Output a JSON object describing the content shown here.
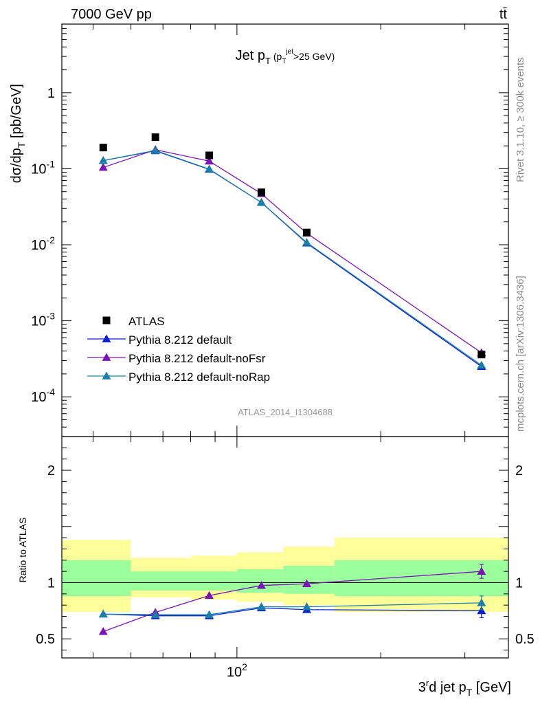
{
  "header": {
    "left": "7000 GeV pp",
    "right": "tt̄"
  },
  "side_labels": {
    "rivet": "Rivet 3.1.10, ≥ 300k events",
    "mcplots": "mcplots.cern.ch [arXiv:1306.3436]"
  },
  "chart_data": [
    {
      "type": "line",
      "panel": "main",
      "title": "Jet p_T (p_T^jet > 25 GeV)",
      "ylabel": "dσ/dp_T [pb/GeV]",
      "xlabel": "",
      "xscale": "log",
      "yscale": "log",
      "xlim": [
        43,
        370
      ],
      "ylim": [
        3e-05,
        8
      ],
      "y_ticks": [
        {
          "value": 0.0001,
          "label": "10^-4"
        },
        {
          "value": 0.001,
          "label": "10^-3"
        },
        {
          "value": 0.01,
          "label": "10^-2"
        },
        {
          "value": 0.1,
          "label": "10^-1"
        },
        {
          "value": 1,
          "label": "1"
        }
      ],
      "legend_position": "bottom-left",
      "watermark": "ATLAS_2014_I1304688",
      "data_points": {
        "name": "ATLAS",
        "color": "#000000",
        "x": [
          52.5,
          67.5,
          87.5,
          112.5,
          140,
          325
        ],
        "y": [
          0.19,
          0.26,
          0.15,
          0.049,
          0.0145,
          0.00036
        ]
      },
      "series": [
        {
          "name": "Pythia 8.212 default",
          "color": "#0a1fd0",
          "x": [
            52.5,
            67.5,
            87.5,
            112.5,
            140,
            325
          ],
          "y": [
            0.128,
            0.172,
            0.098,
            0.036,
            0.0105,
            0.00025
          ]
        },
        {
          "name": "Pythia 8.212 default-noFsr",
          "color": "#7a12b8",
          "x": [
            52.5,
            67.5,
            87.5,
            112.5,
            140,
            325
          ],
          "y": [
            0.104,
            0.178,
            0.126,
            0.047,
            0.0142,
            0.00038
          ]
        },
        {
          "name": "Pythia 8.212 default-noRap",
          "color": "#1a7fa8",
          "x": [
            52.5,
            67.5,
            87.5,
            112.5,
            140,
            325
          ],
          "y": [
            0.128,
            0.174,
            0.099,
            0.036,
            0.0107,
            0.00026
          ]
        }
      ]
    },
    {
      "type": "line",
      "panel": "ratio",
      "ylabel": "Ratio to ATLAS",
      "xlabel": "3rd jet p_T [GeV]",
      "xscale": "log",
      "xlim": [
        43,
        370
      ],
      "ylim": [
        0.33,
        2.3
      ],
      "y_ticks": [
        {
          "value": 0.5,
          "label": "0.5"
        },
        {
          "value": 1,
          "label": "1"
        },
        {
          "value": 2,
          "label": "2"
        }
      ],
      "x_ticks": [
        {
          "value": 100,
          "label": "10^2"
        }
      ],
      "bands": {
        "green": "#9bff9b",
        "yellow": "#ffff99",
        "bins": [
          {
            "x0": 43,
            "x1": 60,
            "inner": [
              0.88,
              1.2
            ],
            "outer": [
              0.74,
              1.38
            ]
          },
          {
            "x0": 60,
            "x1": 80,
            "inner": [
              0.93,
              1.1
            ],
            "outer": [
              0.87,
              1.22
            ]
          },
          {
            "x0": 80,
            "x1": 100,
            "inner": [
              0.93,
              1.1
            ],
            "outer": [
              0.85,
              1.24
            ]
          },
          {
            "x0": 100,
            "x1": 125,
            "inner": [
              0.91,
              1.12
            ],
            "outer": [
              0.83,
              1.27
            ]
          },
          {
            "x0": 125,
            "x1": 160,
            "inner": [
              0.9,
              1.15
            ],
            "outer": [
              0.8,
              1.32
            ]
          },
          {
            "x0": 160,
            "x1": 370,
            "inner": [
              0.88,
              1.2
            ],
            "outer": [
              0.74,
              1.4
            ]
          }
        ]
      },
      "series": [
        {
          "name": "Pythia 8.212 default",
          "color": "#0a1fd0",
          "x": [
            52.5,
            67.5,
            87.5,
            112.5,
            140,
            325
          ],
          "y": [
            0.72,
            0.705,
            0.705,
            0.775,
            0.76,
            0.75
          ]
        },
        {
          "name": "Pythia 8.212 default-noFsr",
          "color": "#7a12b8",
          "x": [
            52.5,
            67.5,
            87.5,
            112.5,
            140,
            325
          ],
          "y": [
            0.565,
            0.735,
            0.885,
            0.975,
            0.99,
            1.1
          ]
        },
        {
          "name": "Pythia 8.212 default-noRap",
          "color": "#1a7fa8",
          "x": [
            52.5,
            67.5,
            87.5,
            112.5,
            140,
            325
          ],
          "y": [
            0.72,
            0.715,
            0.715,
            0.785,
            0.785,
            0.82
          ]
        }
      ]
    }
  ]
}
